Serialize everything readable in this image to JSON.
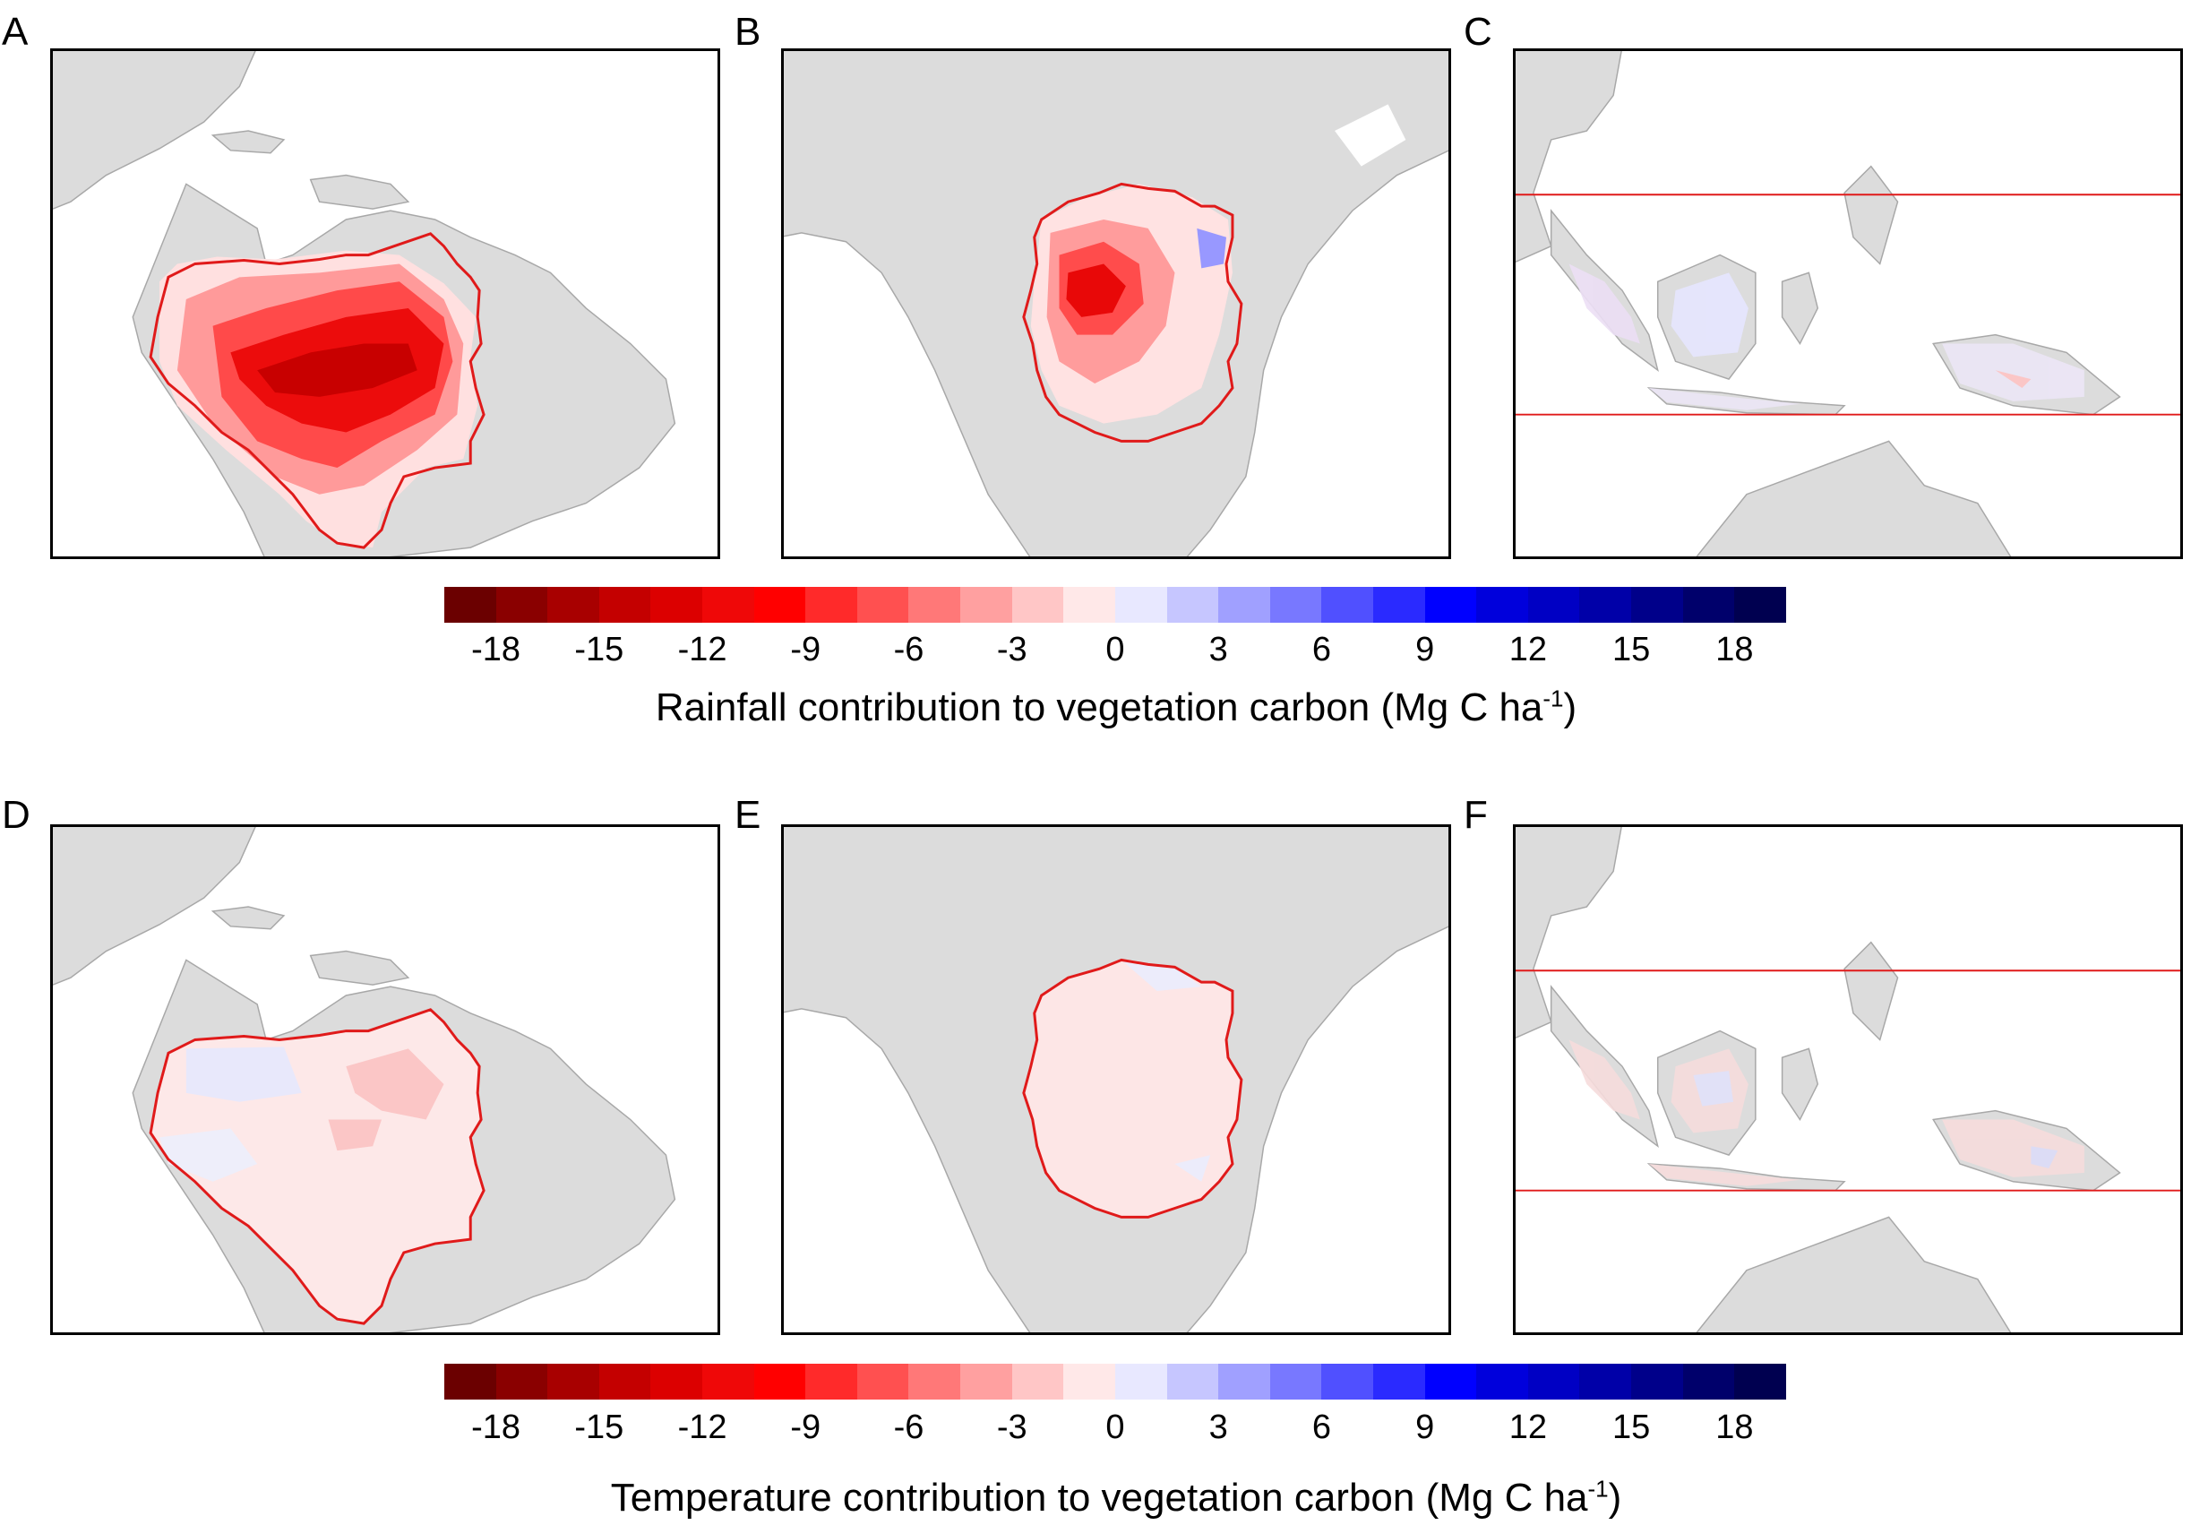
{
  "panels": [
    {
      "letter": "A",
      "region": "amazon"
    },
    {
      "letter": "B",
      "region": "congo"
    },
    {
      "letter": "C",
      "region": "southeast-asia"
    },
    {
      "letter": "D",
      "region": "amazon"
    },
    {
      "letter": "E",
      "region": "congo"
    },
    {
      "letter": "F",
      "region": "southeast-asia"
    }
  ],
  "colorbar": {
    "tick_labels": [
      "-18",
      "-15",
      "-12",
      "-9",
      "-6",
      "-3",
      "0",
      "3",
      "6",
      "9",
      "12",
      "15",
      "18"
    ],
    "colors": [
      "#6b0000",
      "#8a0000",
      "#a80000",
      "#c40000",
      "#dc0000",
      "#ef0808",
      "#ff0000",
      "#ff2a2a",
      "#ff5050",
      "#ff7878",
      "#ffa0a0",
      "#ffc6c6",
      "#ffe8e8",
      "#e8e8ff",
      "#c6c6ff",
      "#a0a0ff",
      "#7878ff",
      "#5050ff",
      "#2a2aff",
      "#0000ff",
      "#0000dc",
      "#0000c4",
      "#0000a8",
      "#00008a",
      "#00006b",
      "#000050"
    ]
  },
  "colorbar_rain": {
    "title_main": "Rainfall contribution to vegetation carbon (Mg C ha",
    "title_sup": "-1",
    "title_end": ")"
  },
  "colorbar_temp": {
    "title_main": "Temperature contribution to vegetation carbon (Mg C ha",
    "title_sup": "-1",
    "title_end": ")"
  },
  "colors": {
    "land": "#dcdcdc",
    "coast": "#a8a8a8",
    "boundary": "#e01a1a",
    "frame": "#000000"
  }
}
